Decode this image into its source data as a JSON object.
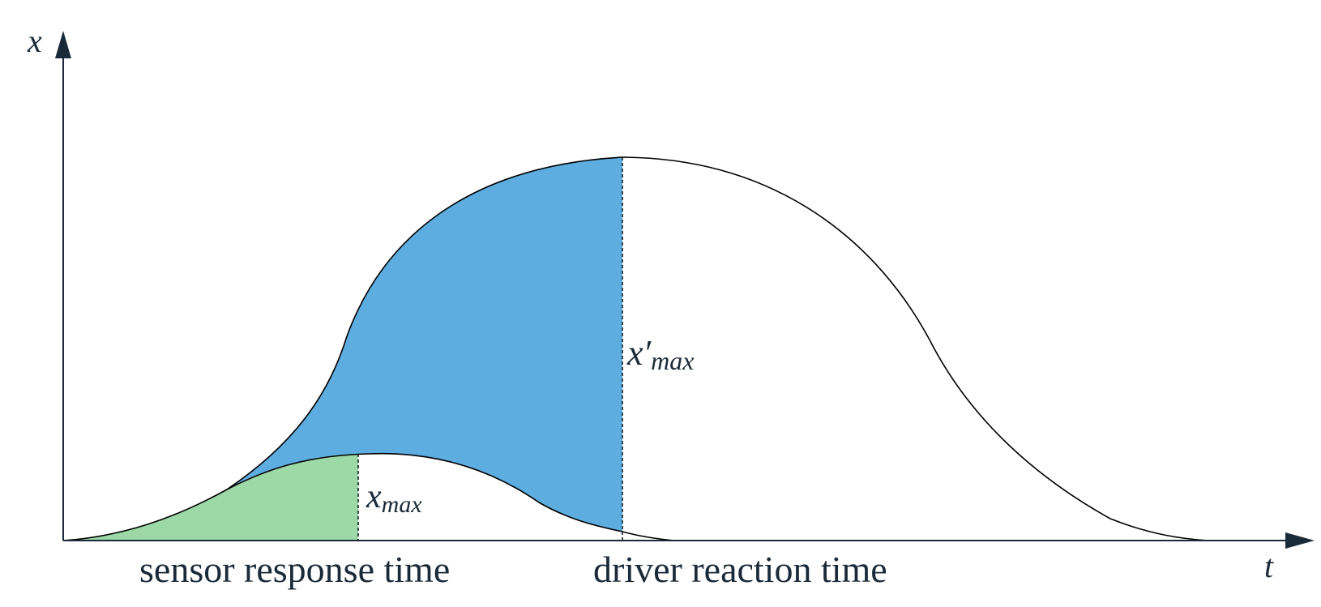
{
  "axes": {
    "y_label": "x",
    "x_label": "t"
  },
  "labels": {
    "x_max_base": "x",
    "x_max_sub": "max",
    "x_prime_max_base": "x′",
    "x_prime_max_sub": "max",
    "sensor_response_time": "sensor response time",
    "driver_reaction_time": "driver reaction time"
  },
  "colors": {
    "blue_region": "#5dade0",
    "green_region": "#9dd9a7",
    "axis": "#1b2a38",
    "curve": "#000000"
  }
}
